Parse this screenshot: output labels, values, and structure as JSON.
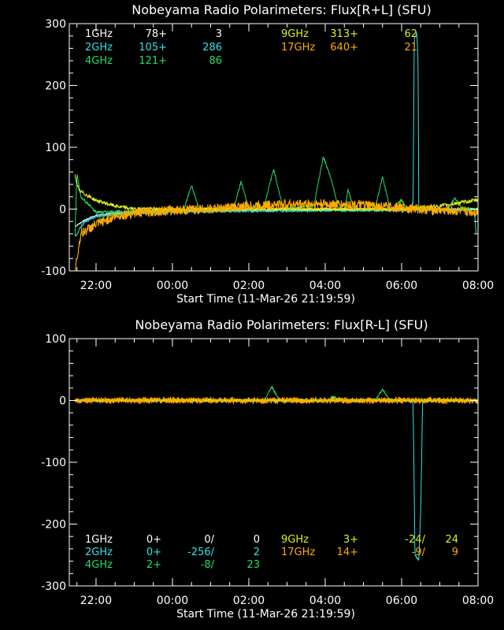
{
  "chart_data": [
    {
      "type": "line",
      "title": "Nobeyama Radio Polarimeters: Flux[R+L] (SFU)",
      "xlabel": "Start Time (11-Mar-26 21:19:59)",
      "ylabel": "",
      "xlim": [
        21.3,
        32.0
      ],
      "ylim": [
        -100,
        300
      ],
      "y_ticks": [
        -100,
        0,
        100,
        200,
        300
      ],
      "x_ticks": [
        {
          "t": 22,
          "label": "22:00"
        },
        {
          "t": 24,
          "label": "00:00"
        },
        {
          "t": 26,
          "label": "02:00"
        },
        {
          "t": 28,
          "label": "04:00"
        },
        {
          "t": 30,
          "label": "06:00"
        },
        {
          "t": 32,
          "label": "08:00"
        }
      ],
      "legend_cols": [
        [
          {
            "name": "1GHz",
            "a": "78+",
            "b": "3",
            "color": "#ffffff"
          },
          {
            "name": "2GHz",
            "a": "105+",
            "b": "286",
            "color": "#33e0e0"
          },
          {
            "name": "4GHz",
            "a": "121+",
            "b": "86",
            "color": "#22dd66"
          }
        ],
        [
          {
            "name": "9GHz",
            "a": "313+",
            "b": "62",
            "color": "#ddee22"
          },
          {
            "name": "17GHz",
            "a": "640+",
            "b": "21",
            "color": "#ffaa00"
          }
        ]
      ],
      "series": [
        {
          "name": "1GHz",
          "color": "#ffffff",
          "noise": 1,
          "points": [
            [
              21.45,
              -28
            ],
            [
              21.7,
              -18
            ],
            [
              22.0,
              -10
            ],
            [
              22.5,
              -6
            ],
            [
              23.0,
              -4
            ],
            [
              24,
              -2
            ],
            [
              26,
              -1
            ],
            [
              28,
              0
            ],
            [
              30,
              0
            ],
            [
              32,
              0
            ]
          ]
        },
        {
          "name": "2GHz",
          "color": "#33e0e0",
          "noise": 2,
          "points": [
            [
              21.45,
              -45
            ],
            [
              21.7,
              -20
            ],
            [
              22.0,
              -12
            ],
            [
              22.5,
              -8
            ],
            [
              23,
              -6
            ],
            [
              24,
              -4
            ],
            [
              26,
              -3
            ],
            [
              28,
              -2
            ],
            [
              30.0,
              -2
            ],
            [
              30.2,
              -1
            ],
            [
              30.3,
              10
            ],
            [
              30.33,
              275
            ],
            [
              30.4,
              285
            ],
            [
              30.43,
              240
            ],
            [
              30.45,
              0
            ],
            [
              30.55,
              -2
            ],
            [
              31,
              -1
            ],
            [
              31.9,
              -1
            ],
            [
              31.95,
              -40
            ]
          ]
        },
        {
          "name": "4GHz",
          "color": "#22dd66",
          "noise": 2,
          "points": [
            [
              21.45,
              -40
            ],
            [
              21.5,
              58
            ],
            [
              21.6,
              20
            ],
            [
              22,
              -5
            ],
            [
              24,
              -2
            ],
            [
              24.3,
              0
            ],
            [
              24.5,
              38
            ],
            [
              24.7,
              0
            ],
            [
              25.6,
              0
            ],
            [
              25.8,
              45
            ],
            [
              26.0,
              0
            ],
            [
              26.4,
              5
            ],
            [
              26.65,
              65
            ],
            [
              26.9,
              0
            ],
            [
              27.7,
              5
            ],
            [
              27.95,
              85
            ],
            [
              28.15,
              50
            ],
            [
              28.35,
              0
            ],
            [
              28.5,
              0
            ],
            [
              28.6,
              32
            ],
            [
              28.75,
              0
            ],
            [
              29.3,
              0
            ],
            [
              29.5,
              52
            ],
            [
              29.7,
              0
            ],
            [
              29.85,
              5
            ],
            [
              30,
              15
            ],
            [
              30.15,
              0
            ],
            [
              31.2,
              0
            ],
            [
              31.4,
              18
            ],
            [
              31.6,
              0
            ],
            [
              32,
              0
            ]
          ]
        },
        {
          "name": "9GHz",
          "color": "#ddee22",
          "noise": 3,
          "points": [
            [
              21.45,
              55
            ],
            [
              21.55,
              30
            ],
            [
              22,
              14
            ],
            [
              22.5,
              5
            ],
            [
              23,
              0
            ],
            [
              24,
              0
            ],
            [
              26,
              0
            ],
            [
              28,
              0
            ],
            [
              30,
              0
            ],
            [
              31,
              5
            ],
            [
              32,
              15
            ]
          ]
        },
        {
          "name": "17GHz",
          "color": "#ffaa00",
          "noise": 8,
          "points": [
            [
              21.45,
              -100
            ],
            [
              21.6,
              -40
            ],
            [
              22,
              -25
            ],
            [
              22.5,
              -12
            ],
            [
              23,
              -6
            ],
            [
              24,
              -2
            ],
            [
              25,
              0
            ],
            [
              26,
              5
            ],
            [
              27,
              8
            ],
            [
              28,
              8
            ],
            [
              29,
              6
            ],
            [
              30,
              2
            ],
            [
              31,
              -2
            ],
            [
              32,
              -5
            ]
          ]
        }
      ]
    },
    {
      "type": "line",
      "title": "Nobeyama Radio Polarimeters: Flux[R-L] (SFU)",
      "xlabel": "Start Time (11-Mar-26 21:19:59)",
      "ylabel": "",
      "xlim": [
        21.3,
        32.0
      ],
      "ylim": [
        -300,
        100
      ],
      "y_ticks": [
        -300,
        -200,
        -100,
        0,
        100
      ],
      "x_ticks": [
        {
          "t": 22,
          "label": "22:00"
        },
        {
          "t": 24,
          "label": "00:00"
        },
        {
          "t": 26,
          "label": "02:00"
        },
        {
          "t": 28,
          "label": "04:00"
        },
        {
          "t": 30,
          "label": "06:00"
        },
        {
          "t": 32,
          "label": "08:00"
        }
      ],
      "legend_cols": [
        [
          {
            "name": "1GHz",
            "a": "0+",
            "b": "0/",
            "c": "0",
            "color": "#ffffff"
          },
          {
            "name": "2GHz",
            "a": "0+",
            "b": "-256/",
            "c": "2",
            "color": "#33e0e0"
          },
          {
            "name": "4GHz",
            "a": "2+",
            "b": "-8/",
            "c": "23",
            "color": "#22dd66"
          }
        ],
        [
          {
            "name": "9GHz",
            "a": "3+",
            "b": "-24/",
            "c": "24",
            "color": "#ddee22"
          },
          {
            "name": "17GHz",
            "a": "14+",
            "b": "-9/",
            "c": "9",
            "color": "#ffaa00"
          }
        ]
      ],
      "series": [
        {
          "name": "1GHz",
          "color": "#ffffff",
          "noise": 1,
          "points": [
            [
              21.45,
              0
            ],
            [
              32,
              0
            ]
          ]
        },
        {
          "name": "2GHz",
          "color": "#33e0e0",
          "noise": 1.5,
          "points": [
            [
              21.45,
              0
            ],
            [
              30.2,
              0
            ],
            [
              30.3,
              -5
            ],
            [
              30.35,
              -250
            ],
            [
              30.45,
              -258
            ],
            [
              30.5,
              -180
            ],
            [
              30.55,
              0
            ],
            [
              31.95,
              0
            ]
          ]
        },
        {
          "name": "4GHz",
          "color": "#22dd66",
          "noise": 1.5,
          "points": [
            [
              21.45,
              0
            ],
            [
              26.4,
              0
            ],
            [
              26.6,
              22
            ],
            [
              26.8,
              0
            ],
            [
              28.1,
              0
            ],
            [
              28.2,
              8
            ],
            [
              28.35,
              0
            ],
            [
              29.3,
              0
            ],
            [
              29.5,
              18
            ],
            [
              29.7,
              0
            ],
            [
              32,
              0
            ]
          ]
        },
        {
          "name": "9GHz",
          "color": "#ddee22",
          "noise": 2.5,
          "points": [
            [
              21.45,
              0
            ],
            [
              32,
              0
            ]
          ]
        },
        {
          "name": "17GHz",
          "color": "#ffaa00",
          "noise": 5,
          "points": [
            [
              21.45,
              0
            ],
            [
              32,
              0
            ]
          ]
        }
      ]
    }
  ]
}
